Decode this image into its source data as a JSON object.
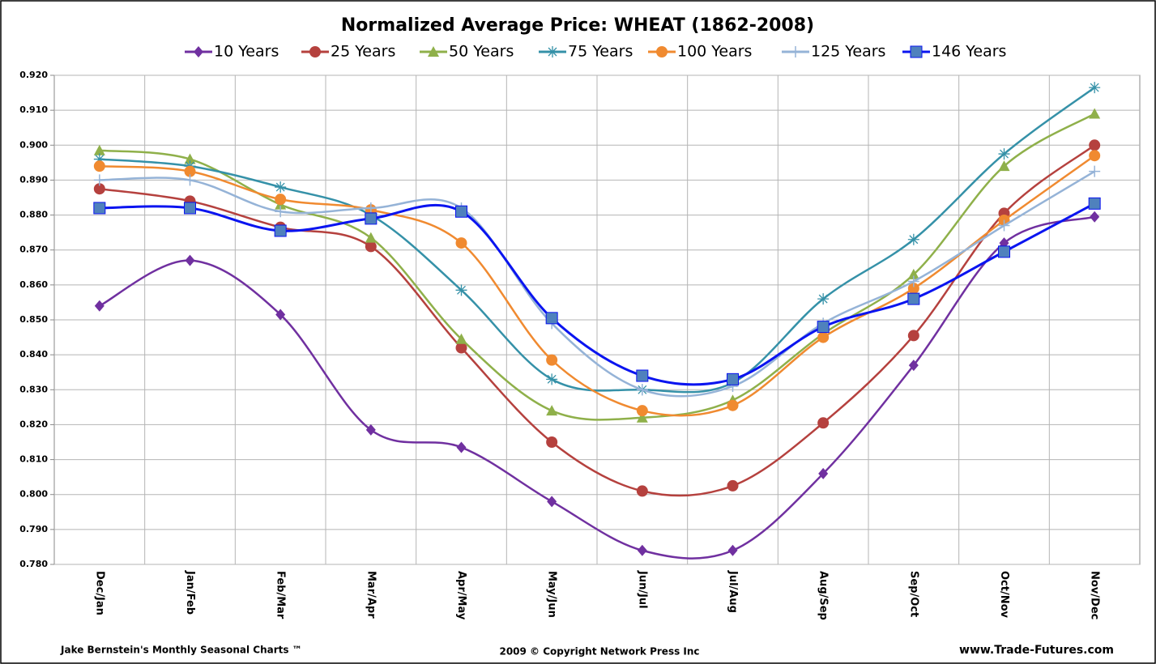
{
  "chart_data": {
    "type": "line",
    "title": "Normalized Average Price: WHEAT (1862-2008)",
    "categories": [
      "Dec/Jan",
      "Jan/Feb",
      "Feb/Mar",
      "Mar/Apr",
      "Apr/May",
      "May/Jun",
      "Jun/Jul",
      "Jul/Aug",
      "Aug/Sep",
      "Sep/Oct",
      "Oct/Nov",
      "Nov/Dec"
    ],
    "series": [
      {
        "name": "10 Years",
        "color": "#7030a0",
        "marker": "diamond",
        "values": [
          0.854,
          0.867,
          0.8515,
          0.8185,
          0.8135,
          0.798,
          0.784,
          0.784,
          0.806,
          0.837,
          0.872,
          0.8795
        ]
      },
      {
        "name": "25 Years",
        "color": "#b5413e",
        "marker": "circle",
        "values": [
          0.8875,
          0.884,
          0.8765,
          0.871,
          0.842,
          0.815,
          0.801,
          0.8025,
          0.8205,
          0.8455,
          0.8805,
          0.9
        ]
      },
      {
        "name": "50 Years",
        "color": "#8fb04a",
        "marker": "triangle",
        "values": [
          0.8985,
          0.896,
          0.883,
          0.8735,
          0.8445,
          0.824,
          0.822,
          0.827,
          0.846,
          0.863,
          0.894,
          0.909
        ]
      },
      {
        "name": "75 Years",
        "color": "#3591a8",
        "marker": "star",
        "values": [
          0.896,
          0.894,
          0.888,
          0.88,
          0.8585,
          0.833,
          0.83,
          0.832,
          0.856,
          0.873,
          0.8975,
          0.9165
        ]
      },
      {
        "name": "100 Years",
        "color": "#f08a30",
        "marker": "circle",
        "values": [
          0.894,
          0.8925,
          0.8845,
          0.8815,
          0.872,
          0.8385,
          0.824,
          0.8255,
          0.845,
          0.859,
          0.8785,
          0.897
        ]
      },
      {
        "name": "125 Years",
        "color": "#95b3d7",
        "marker": "plus",
        "values": [
          0.89,
          0.89,
          0.881,
          0.882,
          0.882,
          0.849,
          0.83,
          0.831,
          0.849,
          0.861,
          0.877,
          0.8925
        ]
      },
      {
        "name": "146 Years",
        "color": "#0a14f0",
        "marker": "square",
        "values": [
          0.882,
          0.882,
          0.8755,
          0.879,
          0.881,
          0.8505,
          0.834,
          0.833,
          0.848,
          0.856,
          0.8695,
          0.8833
        ]
      }
    ],
    "ylim": [
      0.78,
      0.92
    ],
    "yticks": [
      {
        "value": 0.78,
        "label": "0.780"
      },
      {
        "value": 0.79,
        "label": "0.790"
      },
      {
        "value": 0.8,
        "label": "0.800"
      },
      {
        "value": 0.81,
        "label": "0.810"
      },
      {
        "value": 0.82,
        "label": "0.820"
      },
      {
        "value": 0.83,
        "label": "0.830"
      },
      {
        "value": 0.84,
        "label": "0.840"
      },
      {
        "value": 0.85,
        "label": "0.850"
      },
      {
        "value": 0.86,
        "label": "0.860"
      },
      {
        "value": 0.87,
        "label": "0.870"
      },
      {
        "value": 0.88,
        "label": "0.880"
      },
      {
        "value": 0.89,
        "label": "0.890"
      },
      {
        "value": 0.9,
        "label": "0.900"
      },
      {
        "value": 0.91,
        "label": "0.910"
      },
      {
        "value": 0.92,
        "label": "0.920"
      }
    ],
    "grid": true,
    "footer_left": "Jake Bernstein's  Monthly Seasonal  Charts ™",
    "footer_center": "2009  © Copyright Network Press Inc",
    "footer_right": "www.Trade-Futures.com"
  }
}
